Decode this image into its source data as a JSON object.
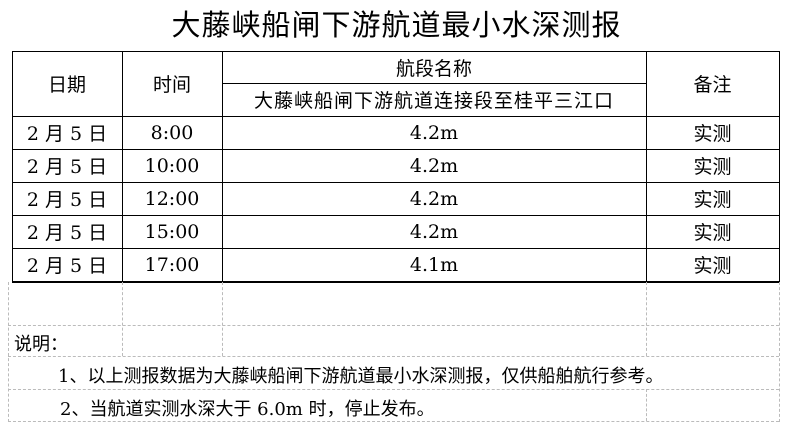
{
  "title": "大藤峡船闸下游航道最小水深测报",
  "headers": {
    "date": "日期",
    "time": "时间",
    "section": "航段名称",
    "section_name": "大藤峡船闸下游航道连接段至桂平三江口",
    "remark": "备注"
  },
  "rows": [
    {
      "date": "2 月 5 日",
      "time": "8:00",
      "depth": "4.2m",
      "remark": "实测"
    },
    {
      "date": "2 月 5 日",
      "time": "10:00",
      "depth": "4.2m",
      "remark": "实测"
    },
    {
      "date": "2 月 5 日",
      "time": "12:00",
      "depth": "4.2m",
      "remark": "实测"
    },
    {
      "date": "2 月 5 日",
      "time": "15:00",
      "depth": "4.2m",
      "remark": "实测"
    },
    {
      "date": "2 月 5 日",
      "time": "17:00",
      "depth": "4.1m",
      "remark": "实测"
    }
  ],
  "notes": {
    "label": "说明：",
    "items": [
      "1、以上测报数据为大藤峡船闸下游航道最小水深测报，仅供船舶航行参考。",
      "2、当航道实测水深大于 6.0m 时，停止发布。"
    ]
  }
}
